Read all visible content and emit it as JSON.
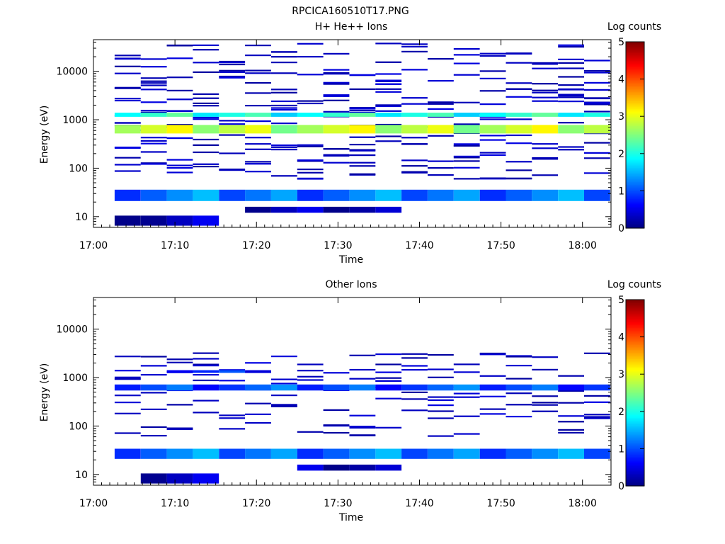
{
  "figure_title": "RPCICA160510T17.PNG",
  "chart_data": [
    {
      "type": "heatmap",
      "title": "H+ He++ Ions",
      "xlabel": "Time",
      "ylabel": "Energy (eV)",
      "x_ticks": [
        "17:00",
        "17:10",
        "17:20",
        "17:30",
        "17:40",
        "17:50",
        "18:00"
      ],
      "y_scale": "log",
      "y_ticks": [
        "10",
        "100",
        "1000",
        "10000"
      ],
      "xlim_minutes": [
        0,
        63.5
      ],
      "ylim_eV": [
        6,
        45000
      ],
      "colorbar": {
        "label": "Log counts",
        "range": [
          0,
          5
        ],
        "ticks": [
          "0",
          "1",
          "2",
          "3",
          "4",
          "5"
        ]
      },
      "grid": false,
      "sample_times_minutes": [
        2.6,
        5.8,
        9.0,
        12.2,
        15.4,
        18.6,
        21.8,
        25.0,
        28.2,
        31.4,
        34.6,
        37.8,
        41.0,
        44.2,
        47.4,
        50.6,
        53.8,
        57.0,
        60.2
      ],
      "bands": [
        {
          "from_min": 2.6,
          "to_min": 60.2,
          "e_low": 520,
          "e_high": 780,
          "log_counts": 2.8
        },
        {
          "from_min": 2.6,
          "to_min": 60.2,
          "e_low": 1150,
          "e_high": 1400,
          "log_counts": 2.0
        },
        {
          "from_min": 2.6,
          "to_min": 60.2,
          "e_low": 21,
          "e_high": 36,
          "log_counts": 1.2
        },
        {
          "from_min": 2.6,
          "to_min": 12.2,
          "e_low": 6.5,
          "e_high": 10.5,
          "log_counts": 0.2
        },
        {
          "from_min": 18.6,
          "to_min": 28.2,
          "e_low": 12,
          "e_high": 16,
          "log_counts": 0.3
        },
        {
          "from_min": 31.4,
          "to_min": 34.6,
          "e_low": 12,
          "e_high": 16,
          "log_counts": 0.3
        }
      ]
    },
    {
      "type": "heatmap",
      "title": "Other Ions",
      "xlabel": "Time",
      "ylabel": "Energy (eV)",
      "x_ticks": [
        "17:00",
        "17:10",
        "17:20",
        "17:30",
        "17:40",
        "17:50",
        "18:00"
      ],
      "y_scale": "log",
      "y_ticks": [
        "10",
        "100",
        "1000",
        "10000"
      ],
      "xlim_minutes": [
        0,
        63.5
      ],
      "ylim_eV": [
        6,
        45000
      ],
      "colorbar": {
        "label": "Log counts",
        "range": [
          0,
          5
        ],
        "ticks": [
          "0",
          "1",
          "2",
          "3",
          "4",
          "5"
        ]
      },
      "grid": false,
      "sample_times_minutes": [
        2.6,
        5.8,
        9.0,
        12.2,
        15.4,
        18.6,
        21.8,
        25.0,
        28.2,
        31.4,
        34.6,
        37.8,
        41.0,
        44.2,
        47.4,
        50.6,
        53.8,
        57.0,
        60.2
      ],
      "bands": [
        {
          "from_min": 2.6,
          "to_min": 60.2,
          "e_low": 540,
          "e_high": 720,
          "log_counts": 1.0
        },
        {
          "from_min": 2.6,
          "to_min": 60.2,
          "e_low": 21,
          "e_high": 34,
          "log_counts": 1.2
        },
        {
          "from_min": 9.0,
          "to_min": 18.6,
          "e_low": 1250,
          "e_high": 1420,
          "log_counts": 0.8
        },
        {
          "from_min": 5.8,
          "to_min": 12.2,
          "e_low": 6.5,
          "e_high": 10.5,
          "log_counts": 0.2
        },
        {
          "from_min": 25.0,
          "to_min": 28.2,
          "e_low": 12,
          "e_high": 16,
          "log_counts": 0.3
        },
        {
          "from_min": 31.4,
          "to_min": 34.6,
          "e_low": 12,
          "e_high": 16,
          "log_counts": 0.3
        }
      ]
    }
  ]
}
